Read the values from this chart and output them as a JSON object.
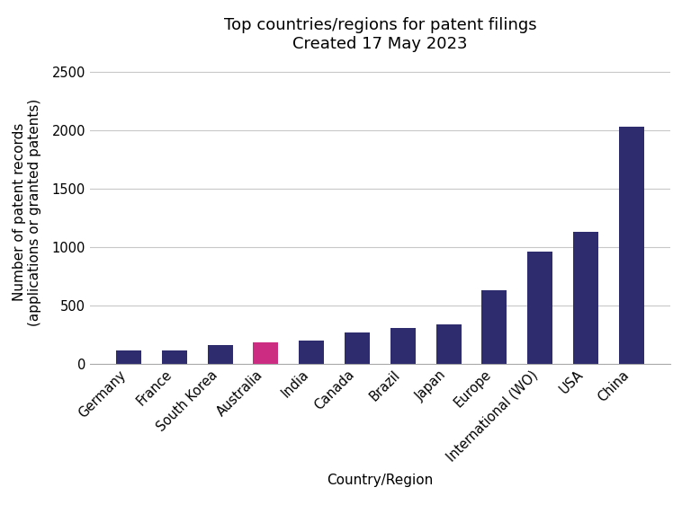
{
  "title_line1": "Top countries/regions for patent filings",
  "title_line2": "Created 17 May 2023",
  "xlabel": "Country/Region",
  "ylabel": "Number of patent records\n(applications or granted patents)",
  "categories": [
    "Germany",
    "France",
    "South Korea",
    "Australia",
    "India",
    "Canada",
    "Brazil",
    "Japan",
    "Europe",
    "International (WO)",
    "USA",
    "China"
  ],
  "values": [
    110,
    115,
    160,
    185,
    195,
    270,
    305,
    335,
    630,
    960,
    1130,
    2030
  ],
  "bar_colors": [
    "#2e2b6e",
    "#2e2b6e",
    "#2e2b6e",
    "#cc2d82",
    "#2e2b6e",
    "#2e2b6e",
    "#2e2b6e",
    "#2e2b6e",
    "#2e2b6e",
    "#2e2b6e",
    "#2e2b6e",
    "#2e2b6e"
  ],
  "ylim": [
    0,
    2600
  ],
  "yticks": [
    0,
    500,
    1000,
    1500,
    2000,
    2500
  ],
  "background_color": "#ffffff",
  "grid_color": "#c8c8c8",
  "title_fontsize": 13,
  "axis_label_fontsize": 11,
  "tick_fontsize": 10.5,
  "bar_width": 0.55
}
